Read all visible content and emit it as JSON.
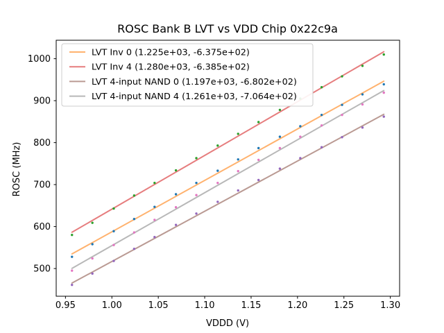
{
  "figure": {
    "background": "#ffffff",
    "spine_color": "#000000"
  },
  "chart_data": {
    "type": "scatter",
    "title": "ROSC Bank B LVT vs VDD Chip 0x22c9a",
    "xlabel": "VDDD (V)",
    "ylabel": "ROSC (MHz)",
    "xlim": [
      0.94,
      1.31
    ],
    "ylim": [
      434,
      1044
    ],
    "grid": false,
    "legend_position": "upper left",
    "x_ticks": {
      "values": [
        0.95,
        1.0,
        1.05,
        1.1,
        1.15,
        1.2,
        1.25,
        1.3
      ],
      "labels": [
        "0.95",
        "1.00",
        "1.05",
        "1.10",
        "1.15",
        "1.20",
        "1.25",
        "1.30"
      ]
    },
    "y_ticks": {
      "values": [
        500,
        600,
        700,
        800,
        900,
        1000
      ],
      "labels": [
        "500",
        "600",
        "700",
        "800",
        "900",
        "1000"
      ]
    },
    "x": [
      0.957,
      0.979,
      1.002,
      1.024,
      1.046,
      1.069,
      1.091,
      1.114,
      1.136,
      1.158,
      1.181,
      1.203,
      1.226,
      1.248,
      1.27,
      1.293
    ],
    "series": [
      {
        "name": "LVT Inv 0 (1.225e+03, -6.375e+02)",
        "fit_slope": 1225.0,
        "fit_intercept": -637.5,
        "line_color": "#ffb26e",
        "marker_color": "#1f77b4",
        "values": [
          528,
          558,
          589,
          618,
          647,
          677,
          704,
          733,
          760,
          787,
          814,
          839,
          866,
          890,
          915,
          939
        ]
      },
      {
        "name": "LVT Inv 4 (1.280e+03, -6.385e+02)",
        "fit_slope": 1280.0,
        "fit_intercept": -638.5,
        "line_color": "#e67d7e",
        "marker_color": "#2ca02c",
        "values": [
          580,
          609,
          643,
          674,
          704,
          734,
          763,
          793,
          821,
          849,
          878,
          905,
          932,
          958,
          983,
          1010
        ]
      },
      {
        "name": "LVT 4-input NAND 0 (1.197e+03, -6.802e+02)",
        "fit_slope": 1197.0,
        "fit_intercept": -680.2,
        "line_color": "#ba9a93",
        "marker_color": "#9467bd",
        "values": [
          461,
          488,
          518,
          547,
          575,
          604,
          631,
          659,
          686,
          711,
          738,
          763,
          789,
          813,
          836,
          862
        ]
      },
      {
        "name": "LVT 4-input NAND 4 (1.261e+03, -7.064e+02)",
        "fit_slope": 1261.0,
        "fit_intercept": -706.4,
        "line_color": "#b8b8b8",
        "marker_color": "#e377c2",
        "values": [
          495,
          524,
          556,
          586,
          616,
          646,
          675,
          704,
          732,
          759,
          787,
          814,
          841,
          866,
          891,
          919
        ]
      }
    ]
  }
}
